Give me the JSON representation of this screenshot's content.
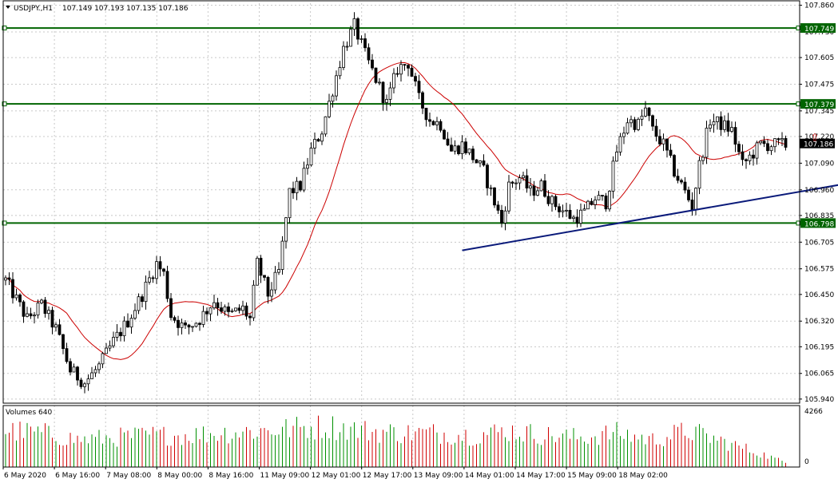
{
  "header": {
    "symbol_label": "USDJPY.,H1",
    "ohlc_label": "107.149 107.193 107.135 107.186"
  },
  "volume_panel": {
    "label": "Volumes 640",
    "max_label": "4266",
    "zero_label": "0",
    "max_value": 4266
  },
  "price_axis": {
    "min": 105.92,
    "max": 107.87,
    "ticks": [
      "107.860",
      "107.730",
      "107.605",
      "107.475",
      "107.345",
      "107.220",
      "107.090",
      "106.960",
      "106.835",
      "106.705",
      "106.575",
      "106.450",
      "106.320",
      "106.195",
      "106.065",
      "105.940"
    ]
  },
  "time_axis": {
    "labels": [
      "6 May 2020",
      "6 May 16:00",
      "7 May 08:00",
      "8 May 00:00",
      "8 May 16:00",
      "11 May 09:00",
      "12 May 01:00",
      "12 May 17:00",
      "13 May 09:00",
      "14 May 01:00",
      "14 May 17:00",
      "15 May 09:00",
      "18 May 02:00"
    ]
  },
  "levels": [
    {
      "name": "resistance-upper",
      "value": 107.749,
      "label": "107.749",
      "color": "#006400"
    },
    {
      "name": "resistance-mid",
      "value": 107.379,
      "label": "107.379",
      "color": "#006400"
    },
    {
      "name": "support",
      "value": 106.798,
      "label": "106.798",
      "color": "#006400"
    }
  ],
  "current_price": {
    "value": 107.186,
    "label": "107.186"
  },
  "trendline": {
    "from": {
      "bar": 127,
      "price": 106.665
    },
    "to": {
      "bar": 240,
      "price": 107.009
    },
    "color": "#0a1a7a"
  },
  "arrow_marker": {
    "bar": 225,
    "price": 107.215,
    "color": "#e03030",
    "glyph": "⇧"
  },
  "colors": {
    "grid": "#c8c8c8",
    "frame": "#000000",
    "ma": "#cc0000",
    "volume_up": "#009000",
    "volume_down": "#d00000",
    "candle": "#000000"
  },
  "chart_data": {
    "type": "candlestick",
    "title": "",
    "xlabel": "",
    "ylabel": "",
    "timeframe": "H1",
    "ylim": [
      105.92,
      107.87
    ],
    "bars": 218,
    "anchors": [
      [
        0,
        106.52
      ],
      [
        6,
        106.33
      ],
      [
        10,
        106.4
      ],
      [
        14,
        106.28
      ],
      [
        18,
        106.08
      ],
      [
        22,
        106.02
      ],
      [
        26,
        106.1
      ],
      [
        30,
        106.22
      ],
      [
        34,
        106.32
      ],
      [
        38,
        106.45
      ],
      [
        42,
        106.6
      ],
      [
        44,
        106.55
      ],
      [
        46,
        106.35
      ],
      [
        50,
        106.28
      ],
      [
        54,
        106.33
      ],
      [
        58,
        106.42
      ],
      [
        62,
        106.35
      ],
      [
        66,
        106.38
      ],
      [
        68,
        106.33
      ],
      [
        70,
        106.6
      ],
      [
        73,
        106.45
      ],
      [
        76,
        106.56
      ],
      [
        79,
        106.95
      ],
      [
        82,
        106.98
      ],
      [
        85,
        107.15
      ],
      [
        88,
        107.25
      ],
      [
        91,
        107.45
      ],
      [
        94,
        107.65
      ],
      [
        97,
        107.76
      ],
      [
        100,
        107.62
      ],
      [
        103,
        107.5
      ],
      [
        106,
        107.38
      ],
      [
        109,
        107.55
      ],
      [
        112,
        107.58
      ],
      [
        115,
        107.4
      ],
      [
        118,
        107.3
      ],
      [
        121,
        107.28
      ],
      [
        124,
        107.15
      ],
      [
        127,
        107.18
      ],
      [
        130,
        107.12
      ],
      [
        133,
        107.05
      ],
      [
        136,
        106.9
      ],
      [
        138,
        106.8
      ],
      [
        140,
        106.98
      ],
      [
        143,
        107.02
      ],
      [
        146,
        106.95
      ],
      [
        149,
        106.98
      ],
      [
        152,
        106.9
      ],
      [
        155,
        106.86
      ],
      [
        158,
        106.82
      ],
      [
        161,
        106.85
      ],
      [
        164,
        106.92
      ],
      [
        167,
        106.9
      ],
      [
        170,
        107.15
      ],
      [
        173,
        107.3
      ],
      [
        176,
        107.28
      ],
      [
        178,
        107.35
      ],
      [
        180,
        107.25
      ],
      [
        183,
        107.18
      ],
      [
        186,
        107.05
      ],
      [
        189,
        106.95
      ],
      [
        191,
        106.88
      ],
      [
        193,
        107.08
      ],
      [
        196,
        107.3
      ],
      [
        199,
        107.28
      ],
      [
        202,
        107.25
      ],
      [
        205,
        107.08
      ],
      [
        207,
        107.12
      ],
      [
        210,
        107.18
      ]
    ],
    "volume_anchors": [
      [
        0,
        0.8
      ],
      [
        10,
        0.75
      ],
      [
        20,
        0.6
      ],
      [
        30,
        0.65
      ],
      [
        40,
        0.7
      ],
      [
        50,
        0.7
      ],
      [
        60,
        0.75
      ],
      [
        70,
        0.8
      ],
      [
        80,
        0.85
      ],
      [
        90,
        0.9
      ],
      [
        100,
        0.8
      ],
      [
        110,
        0.75
      ],
      [
        120,
        0.75
      ],
      [
        130,
        0.7
      ],
      [
        140,
        0.8
      ],
      [
        150,
        0.7
      ],
      [
        160,
        0.65
      ],
      [
        170,
        0.75
      ],
      [
        180,
        0.6
      ],
      [
        190,
        0.8
      ],
      [
        200,
        0.55
      ],
      [
        210,
        0.3
      ],
      [
        217,
        0.1
      ]
    ],
    "ma_period": 18,
    "x": [
      "6 May 2020",
      "6 May 16:00",
      "7 May 08:00",
      "8 May 00:00",
      "8 May 16:00",
      "11 May 09:00",
      "12 May 01:00",
      "12 May 17:00",
      "13 May 09:00",
      "14 May 01:00",
      "14 May 17:00",
      "15 May 09:00",
      "18 May 02:00"
    ]
  }
}
